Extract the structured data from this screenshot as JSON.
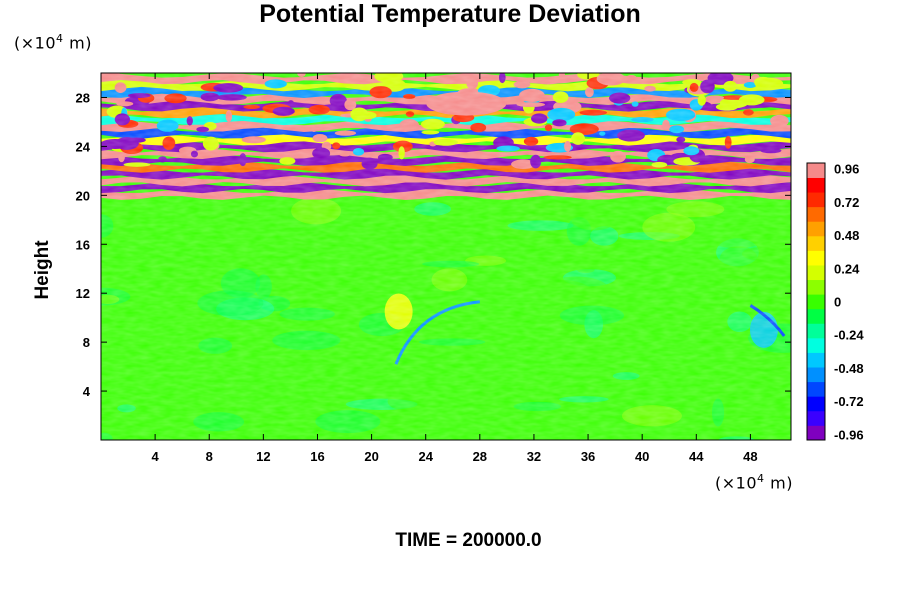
{
  "chart_data": {
    "type": "heatmap",
    "title": "Potential Temperature Deviation",
    "ylabel": "Height",
    "y_unit_prefix": "(×10",
    "y_unit_exp": "4",
    "y_unit_suffix": " m)",
    "x_unit_prefix": "(×10",
    "x_unit_exp": "4",
    "x_unit_suffix": " m)",
    "x_ticks": [
      "4",
      "8",
      "12",
      "16",
      "20",
      "24",
      "28",
      "32",
      "36",
      "40",
      "44",
      "48"
    ],
    "y_ticks": [
      "4",
      "8",
      "12",
      "16",
      "20",
      "24",
      "28"
    ],
    "x_tick_values": [
      4,
      8,
      12,
      16,
      20,
      24,
      28,
      32,
      36,
      40,
      44,
      48
    ],
    "y_tick_values": [
      4,
      8,
      12,
      16,
      20,
      24,
      28
    ],
    "xlim": [
      0,
      51
    ],
    "ylim": [
      0,
      30
    ],
    "colorbar_ticks": [
      "0.96",
      "0.72",
      "0.48",
      "0.24",
      "0",
      "-0.24",
      "-0.48",
      "-0.72",
      "-0.96"
    ],
    "colorbar_tick_values": [
      0.96,
      0.72,
      0.48,
      0.24,
      0,
      -0.24,
      -0.48,
      -0.72,
      -0.96
    ],
    "colorbar_range": [
      -1.0,
      1.0
    ],
    "colorbar_colors": [
      "#7f00bf",
      "#3a00ff",
      "#0000ff",
      "#0047ff",
      "#0090ff",
      "#00c8ff",
      "#00ffe0",
      "#00ff9a",
      "#00ff44",
      "#38ff00",
      "#8cff00",
      "#d4ff00",
      "#ffff00",
      "#ffd000",
      "#ffa000",
      "#ff6a00",
      "#ff2a00",
      "#ff0000",
      "#f58a8a"
    ],
    "background_value": 0.05,
    "field_regions": [
      {
        "label": "stratosphere wave band",
        "y_range": [
          20,
          30
        ],
        "pattern": "alternating -0.96 / 0.96 horizontal stripes"
      },
      {
        "label": "troposphere",
        "y_range": [
          0,
          20
        ],
        "value": 0.05
      },
      {
        "label": "warm anomaly",
        "x": 22,
        "y": 10.5,
        "value": 0.3
      },
      {
        "label": "cold arc",
        "x_range": [
          21,
          30
        ],
        "y_range": [
          6,
          11
        ],
        "value": -0.5
      },
      {
        "label": "cold edge right",
        "x": 49,
        "y": 9,
        "value": -0.4
      }
    ]
  },
  "time_label": "TIME = 200000.0"
}
